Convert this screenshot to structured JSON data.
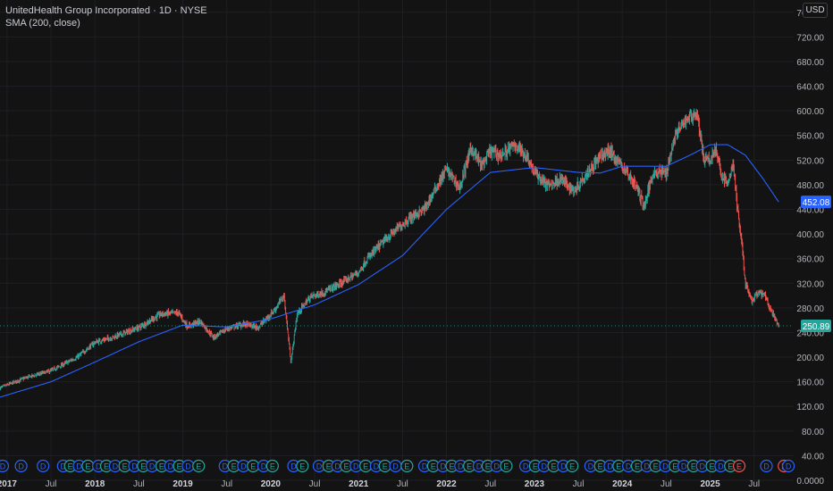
{
  "header": {
    "title": "UnitedHealth Group Incorporated · 1D · NYSE",
    "indicator": "SMA (200, close)"
  },
  "currency_button": "USD",
  "colors": {
    "background": "#131313",
    "up": "#26a69a",
    "down": "#ef5350",
    "sma": "#2962ff",
    "grid": "#1e1f24",
    "axis_text": "#b2b5be"
  },
  "chart_data": {
    "type": "line",
    "ylim": [
      0,
      780
    ],
    "y_ticks": [
      0,
      40,
      80,
      120,
      160,
      200,
      240,
      280,
      320,
      360,
      400,
      440,
      480,
      520,
      560,
      600,
      640,
      680,
      720,
      760
    ],
    "y_tick_labels": [
      "0.0000",
      "40.00",
      "80.00",
      "120.00",
      "160.00",
      "200.00",
      "240.00",
      "280.00",
      "320.00",
      "360.00",
      "400.00",
      "440.00",
      "480.00",
      "520.00",
      "560.00",
      "600.00",
      "640.00",
      "680.00",
      "720.00",
      "760.00"
    ],
    "xlim": [
      2016.92,
      2025.95
    ],
    "x_ticks": [
      {
        "x": 2017.0,
        "label": "2017",
        "bold": true
      },
      {
        "x": 2017.5,
        "label": "Jul",
        "bold": false
      },
      {
        "x": 2018.0,
        "label": "2018",
        "bold": true
      },
      {
        "x": 2018.5,
        "label": "Jul",
        "bold": false
      },
      {
        "x": 2019.0,
        "label": "2019",
        "bold": true
      },
      {
        "x": 2019.5,
        "label": "Jul",
        "bold": false
      },
      {
        "x": 2020.0,
        "label": "2020",
        "bold": true
      },
      {
        "x": 2020.5,
        "label": "Jul",
        "bold": false
      },
      {
        "x": 2021.0,
        "label": "2021",
        "bold": true
      },
      {
        "x": 2021.5,
        "label": "Jul",
        "bold": false
      },
      {
        "x": 2022.0,
        "label": "2022",
        "bold": true
      },
      {
        "x": 2022.5,
        "label": "Jul",
        "bold": false
      },
      {
        "x": 2023.0,
        "label": "2023",
        "bold": true
      },
      {
        "x": 2023.5,
        "label": "Jul",
        "bold": false
      },
      {
        "x": 2024.0,
        "label": "2024",
        "bold": true
      },
      {
        "x": 2024.5,
        "label": "Jul",
        "bold": false
      },
      {
        "x": 2025.0,
        "label": "2025",
        "bold": true
      },
      {
        "x": 2025.5,
        "label": "Jul",
        "bold": false
      }
    ],
    "price_keypoints": [
      [
        2016.92,
        150
      ],
      [
        2017.2,
        166
      ],
      [
        2017.5,
        178
      ],
      [
        2017.8,
        200
      ],
      [
        2018.0,
        224
      ],
      [
        2018.2,
        232
      ],
      [
        2018.5,
        248
      ],
      [
        2018.75,
        270
      ],
      [
        2018.95,
        272
      ],
      [
        2019.05,
        250
      ],
      [
        2019.2,
        258
      ],
      [
        2019.35,
        232
      ],
      [
        2019.5,
        246
      ],
      [
        2019.7,
        254
      ],
      [
        2019.85,
        248
      ],
      [
        2019.95,
        262
      ],
      [
        2020.05,
        278
      ],
      [
        2020.15,
        300
      ],
      [
        2020.23,
        192
      ],
      [
        2020.3,
        270
      ],
      [
        2020.45,
        298
      ],
      [
        2020.6,
        305
      ],
      [
        2020.8,
        320
      ],
      [
        2021.0,
        338
      ],
      [
        2021.1,
        360
      ],
      [
        2021.3,
        390
      ],
      [
        2021.45,
        410
      ],
      [
        2021.6,
        428
      ],
      [
        2021.75,
        440
      ],
      [
        2021.9,
        480
      ],
      [
        2022.0,
        505
      ],
      [
        2022.15,
        475
      ],
      [
        2022.28,
        540
      ],
      [
        2022.4,
        510
      ],
      [
        2022.5,
        535
      ],
      [
        2022.62,
        528
      ],
      [
        2022.78,
        545
      ],
      [
        2022.92,
        525
      ],
      [
        2023.0,
        500
      ],
      [
        2023.15,
        478
      ],
      [
        2023.3,
        490
      ],
      [
        2023.45,
        470
      ],
      [
        2023.6,
        500
      ],
      [
        2023.75,
        525
      ],
      [
        2023.85,
        535
      ],
      [
        2024.0,
        510
      ],
      [
        2024.15,
        480
      ],
      [
        2024.25,
        445
      ],
      [
        2024.35,
        500
      ],
      [
        2024.5,
        500
      ],
      [
        2024.6,
        560
      ],
      [
        2024.75,
        590
      ],
      [
        2024.85,
        595
      ],
      [
        2024.93,
        520
      ],
      [
        2025.0,
        520
      ],
      [
        2025.06,
        540
      ],
      [
        2025.12,
        498
      ],
      [
        2025.2,
        480
      ],
      [
        2025.26,
        515
      ],
      [
        2025.31,
        440
      ],
      [
        2025.36,
        385
      ],
      [
        2025.4,
        320
      ],
      [
        2025.47,
        290
      ],
      [
        2025.55,
        305
      ],
      [
        2025.62,
        300
      ],
      [
        2025.68,
        280
      ],
      [
        2025.75,
        258
      ],
      [
        2025.78,
        251
      ]
    ],
    "sma_keypoints": [
      [
        2016.92,
        135
      ],
      [
        2017.5,
        160
      ],
      [
        2018.0,
        192
      ],
      [
        2018.5,
        225
      ],
      [
        2019.0,
        252
      ],
      [
        2019.5,
        249
      ],
      [
        2020.0,
        262
      ],
      [
        2020.5,
        285
      ],
      [
        2021.0,
        318
      ],
      [
        2021.5,
        365
      ],
      [
        2022.0,
        440
      ],
      [
        2022.5,
        500
      ],
      [
        2023.0,
        508
      ],
      [
        2023.5,
        500
      ],
      [
        2023.75,
        499
      ],
      [
        2024.0,
        510
      ],
      [
        2024.5,
        510
      ],
      [
        2024.8,
        530
      ],
      [
        2025.0,
        545
      ],
      [
        2025.2,
        545
      ],
      [
        2025.4,
        528
      ],
      [
        2025.6,
        490
      ],
      [
        2025.78,
        452
      ]
    ],
    "current_price": {
      "value": 250.89,
      "label": "250.89"
    },
    "sma_value": {
      "value": 452.08,
      "label": "452.08"
    },
    "events": [
      {
        "x": 2016.95,
        "t": "D"
      },
      {
        "x": 2017.16,
        "t": "D"
      },
      {
        "x": 2017.41,
        "t": "D"
      },
      {
        "x": 2017.64,
        "t": "D"
      },
      {
        "x": 2017.72,
        "t": "E"
      },
      {
        "x": 2017.82,
        "t": "D"
      },
      {
        "x": 2017.92,
        "t": "E"
      },
      {
        "x": 2018.04,
        "t": "D"
      },
      {
        "x": 2018.13,
        "t": "E"
      },
      {
        "x": 2018.23,
        "t": "D"
      },
      {
        "x": 2018.34,
        "t": "E"
      },
      {
        "x": 2018.45,
        "t": "D"
      },
      {
        "x": 2018.55,
        "t": "E"
      },
      {
        "x": 2018.65,
        "t": "D"
      },
      {
        "x": 2018.76,
        "t": "E"
      },
      {
        "x": 2018.86,
        "t": "D"
      },
      {
        "x": 2018.96,
        "t": "E"
      },
      {
        "x": 2019.06,
        "t": "D"
      },
      {
        "x": 2019.18,
        "t": "E"
      },
      {
        "x": 2019.48,
        "t": "D"
      },
      {
        "x": 2019.58,
        "t": "E"
      },
      {
        "x": 2019.69,
        "t": "D"
      },
      {
        "x": 2019.8,
        "t": "E"
      },
      {
        "x": 2019.92,
        "t": "D"
      },
      {
        "x": 2020.02,
        "t": "E"
      },
      {
        "x": 2020.26,
        "t": "D"
      },
      {
        "x": 2020.36,
        "t": "E"
      },
      {
        "x": 2020.55,
        "t": "D"
      },
      {
        "x": 2020.66,
        "t": "E"
      },
      {
        "x": 2020.76,
        "t": "D"
      },
      {
        "x": 2020.86,
        "t": "E"
      },
      {
        "x": 2020.97,
        "t": "D"
      },
      {
        "x": 2021.08,
        "t": "E"
      },
      {
        "x": 2021.2,
        "t": "D"
      },
      {
        "x": 2021.3,
        "t": "E"
      },
      {
        "x": 2021.42,
        "t": "D"
      },
      {
        "x": 2021.55,
        "t": "E"
      },
      {
        "x": 2021.75,
        "t": "D"
      },
      {
        "x": 2021.85,
        "t": "E"
      },
      {
        "x": 2021.96,
        "t": "D"
      },
      {
        "x": 2022.06,
        "t": "E"
      },
      {
        "x": 2022.16,
        "t": "D"
      },
      {
        "x": 2022.26,
        "t": "E"
      },
      {
        "x": 2022.37,
        "t": "D"
      },
      {
        "x": 2022.47,
        "t": "E"
      },
      {
        "x": 2022.57,
        "t": "D"
      },
      {
        "x": 2022.68,
        "t": "E"
      },
      {
        "x": 2022.9,
        "t": "D"
      },
      {
        "x": 2023.01,
        "t": "E"
      },
      {
        "x": 2023.11,
        "t": "D"
      },
      {
        "x": 2023.22,
        "t": "E"
      },
      {
        "x": 2023.33,
        "t": "D"
      },
      {
        "x": 2023.43,
        "t": "E"
      },
      {
        "x": 2023.64,
        "t": "D"
      },
      {
        "x": 2023.75,
        "t": "E"
      },
      {
        "x": 2023.86,
        "t": "D"
      },
      {
        "x": 2023.96,
        "t": "E"
      },
      {
        "x": 2024.07,
        "t": "D"
      },
      {
        "x": 2024.17,
        "t": "E"
      },
      {
        "x": 2024.28,
        "t": "D"
      },
      {
        "x": 2024.38,
        "t": "E"
      },
      {
        "x": 2024.49,
        "t": "D"
      },
      {
        "x": 2024.6,
        "t": "E"
      },
      {
        "x": 2024.7,
        "t": "D"
      },
      {
        "x": 2024.81,
        "t": "E"
      },
      {
        "x": 2024.91,
        "t": "D"
      },
      {
        "x": 2025.02,
        "t": "E"
      },
      {
        "x": 2025.12,
        "t": "D"
      },
      {
        "x": 2025.23,
        "t": "E"
      },
      {
        "x": 2025.33,
        "t": "E2"
      },
      {
        "x": 2025.64,
        "t": "D"
      },
      {
        "x": 2025.84,
        "t": "E2"
      },
      {
        "x": 2025.89,
        "t": "D"
      }
    ]
  }
}
